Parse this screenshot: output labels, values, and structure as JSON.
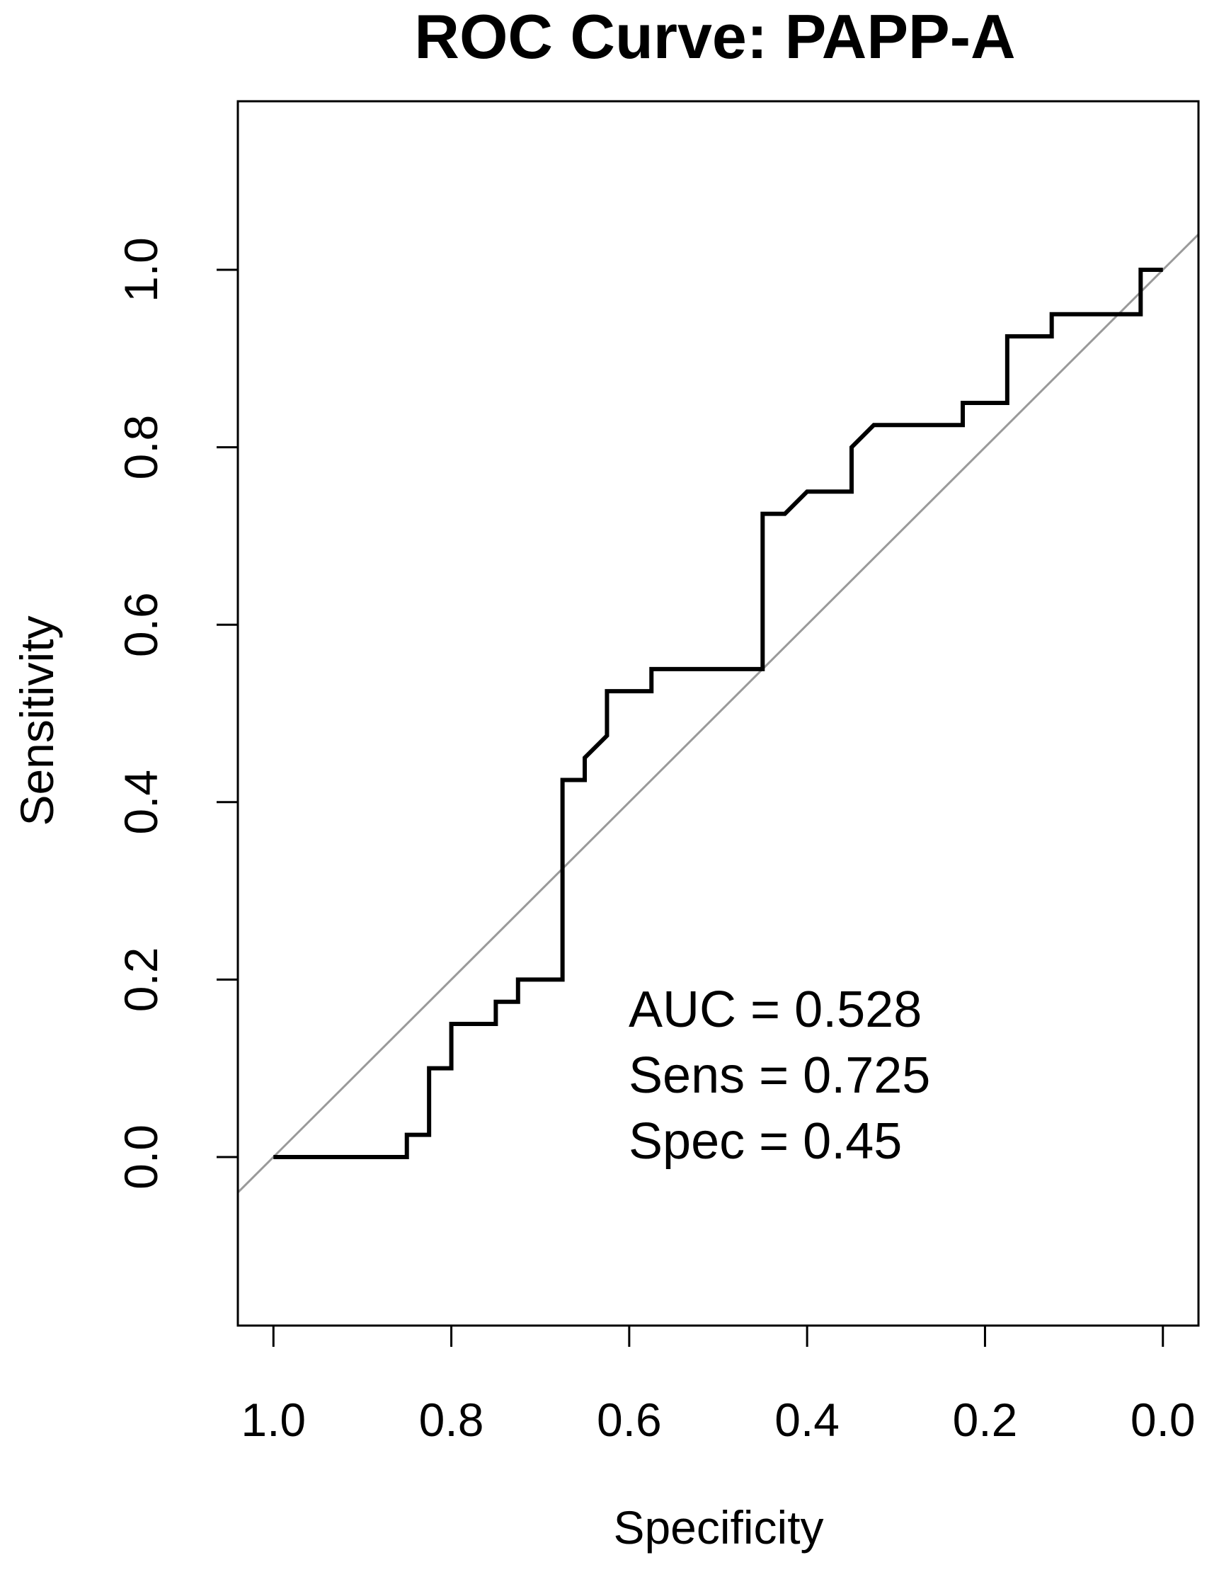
{
  "chart_data": {
    "type": "line",
    "title": "ROC Curve: PAPP-A",
    "xlabel": "Specificity",
    "ylabel": "Sensitivity",
    "xlim": [
      1.04,
      -0.04
    ],
    "ylim": [
      -0.19,
      1.19
    ],
    "x_reversed": true,
    "x_ticks": [
      1.0,
      0.8,
      0.6,
      0.4,
      0.2,
      0.0
    ],
    "x_tick_labels": [
      "1.0",
      "0.8",
      "0.6",
      "0.4",
      "0.2",
      "0.0"
    ],
    "y_ticks": [
      0.0,
      0.2,
      0.4,
      0.6,
      0.8,
      1.0
    ],
    "y_tick_labels": [
      "0.0",
      "0.2",
      "0.4",
      "0.6",
      "0.8",
      "1.0"
    ],
    "grid": false,
    "legend": "none",
    "series": [
      {
        "role": "roc",
        "color": "#000000",
        "x": [
          1.0,
          0.85,
          0.85,
          0.825,
          0.825,
          0.8,
          0.8,
          0.75,
          0.75,
          0.725,
          0.725,
          0.675,
          0.675,
          0.65,
          0.65,
          0.625,
          0.625,
          0.575,
          0.575,
          0.45,
          0.45,
          0.425,
          0.4,
          0.35,
          0.35,
          0.325,
          0.225,
          0.225,
          0.175,
          0.175,
          0.125,
          0.125,
          0.025,
          0.025,
          0.0
        ],
        "y": [
          0.0,
          0.0,
          0.025,
          0.025,
          0.1,
          0.1,
          0.15,
          0.15,
          0.175,
          0.175,
          0.2,
          0.2,
          0.425,
          0.425,
          0.45,
          0.475,
          0.525,
          0.525,
          0.55,
          0.55,
          0.725,
          0.725,
          0.75,
          0.75,
          0.8,
          0.825,
          0.825,
          0.85,
          0.85,
          0.925,
          0.925,
          0.95,
          0.95,
          1.0,
          1.0
        ]
      },
      {
        "role": "chance-diagonal",
        "color": "#9a9a9a",
        "x": [
          1.04,
          -0.04
        ],
        "y": [
          -0.04,
          1.04
        ]
      }
    ],
    "annotations": [
      "AUC = 0.528",
      "Sens = 0.725",
      "Spec = 0.45"
    ]
  }
}
